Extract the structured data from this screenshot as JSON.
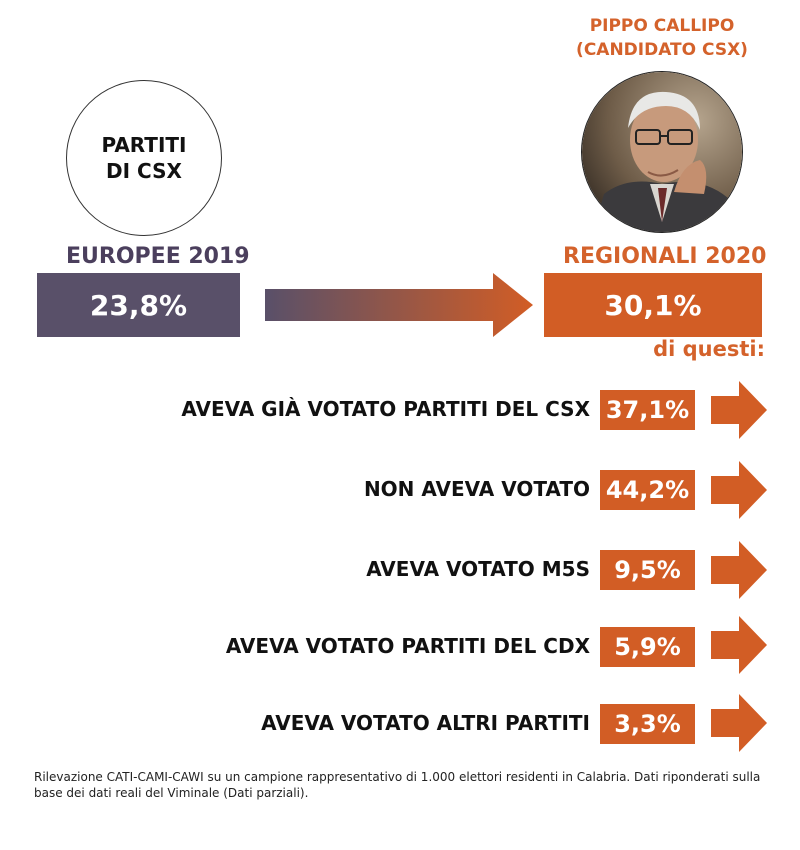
{
  "left": {
    "circle_line1": "PARTITI",
    "circle_line2": "DI CSX",
    "heading": "EUROPEE 2019",
    "value": "23,8%"
  },
  "right": {
    "candidate_line1": "PIPPO CALLIPO",
    "candidate_line2": "(CANDIDATO CSX)",
    "heading": "REGIONALI 2020",
    "value": "30,1%",
    "subheading": "di questi:"
  },
  "rows": [
    {
      "label": "AVEVA GIÀ VOTATO PARTITI DEL CSX",
      "value": "37,1%"
    },
    {
      "label": "NON AVEVA VOTATO",
      "value": "44,2%"
    },
    {
      "label": "AVEVA VOTATO M5S",
      "value": "9,5%"
    },
    {
      "label": "AVEVA VOTATO PARTITI DEL CDX",
      "value": "5,9%"
    },
    {
      "label": "AVEVA VOTATO ALTRI PARTITI",
      "value": "3,3%"
    }
  ],
  "footnote": "Rilevazione CATI-CAMI-CAWI su un campione rappresentativo di 1.000 elettori residenti in Calabria. Dati riponderati sulla base dei dati reali del Viminale (Dati parziali).",
  "colors": {
    "orange": "#d25d25",
    "purple": "#595069",
    "purple_text": "#4b3f5d"
  }
}
